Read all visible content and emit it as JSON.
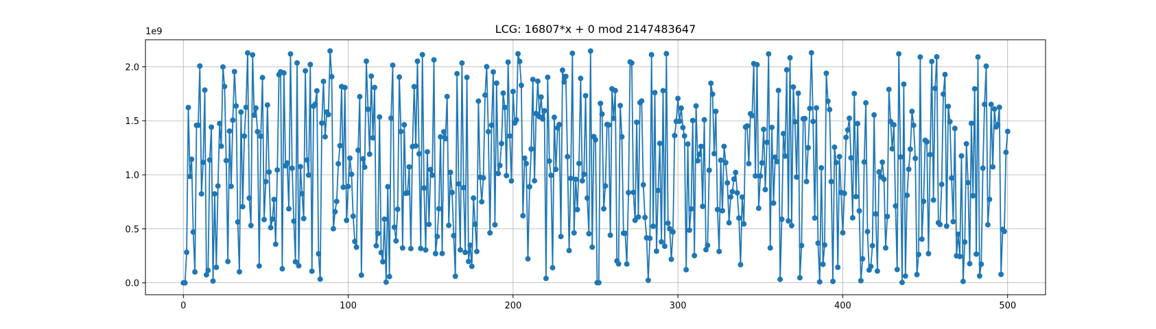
{
  "chart_data": {
    "type": "line",
    "title": "LCG: 16807*x + 0 mod 2147483647",
    "xlabel": "",
    "ylabel": "",
    "y_offset_label": "1e9",
    "xlim": [
      -23,
      523
    ],
    "ylim": [
      -0.11,
      2.25
    ],
    "y_unit_scale": 1000000000.0,
    "x_ticks": [
      0,
      100,
      200,
      300,
      400,
      500
    ],
    "x_tick_labels": [
      "0",
      "100",
      "200",
      "300",
      "400",
      "500"
    ],
    "y_ticks": [
      0.0,
      0.5,
      1.0,
      1.5,
      2.0
    ],
    "y_tick_labels": [
      "0.0",
      "0.5",
      "1.0",
      "1.5",
      "2.0"
    ],
    "grid": true,
    "marker": "circle",
    "color": "#1f77b4",
    "generator": {
      "multiplier": 16807,
      "increment": 0,
      "modulus": 2147483647,
      "seed": 1,
      "count": 501
    }
  }
}
